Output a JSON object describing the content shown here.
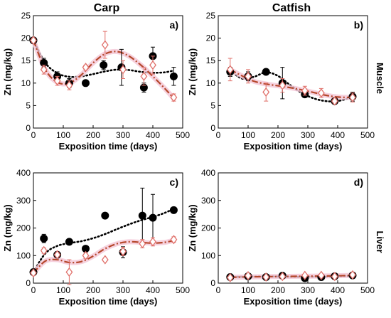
{
  "column_titles": [
    "Carp",
    "Catfish"
  ],
  "row_labels": [
    "Muscle",
    "Liver"
  ],
  "colors": {
    "fish_fit": "#000000",
    "shrimp_marker": "#e0706a",
    "shrimp_fit": "#b5472b",
    "shade": "#f4c5d6"
  },
  "chart_data": [
    {
      "type": "scatter",
      "panel_label": "a)",
      "column_title": "Carp",
      "row_label": "Muscle",
      "xlabel": "Exposition time (days)",
      "ylabel": "Zn (mg/kg)",
      "xlim": [
        0,
        500
      ],
      "ylim": [
        0,
        25
      ],
      "xticks": [
        0,
        100,
        200,
        300,
        400,
        500
      ],
      "yticks": [
        0,
        5,
        10,
        15,
        20,
        25
      ],
      "grid": false,
      "series": [
        {
          "marker": "filled-circle",
          "x": [
            0,
            35,
            80,
            120,
            175,
            235,
            295,
            370,
            400,
            470
          ],
          "y": [
            19.5,
            14.5,
            11.5,
            10,
            10,
            14,
            13.5,
            9,
            16,
            11.5
          ],
          "err": [
            0.5,
            1.0,
            1.0,
            1.0,
            0.5,
            1.0,
            4.0,
            1.0,
            2.0,
            2.0
          ]
        },
        {
          "marker": "open-diamond",
          "x": [
            0,
            35,
            80,
            120,
            175,
            240,
            300,
            370,
            400,
            470
          ],
          "y": [
            19.5,
            13.0,
            10.5,
            9.5,
            13.5,
            18.5,
            13.0,
            11.5,
            14.0,
            6.8
          ],
          "err": [
            0.5,
            1.0,
            1.0,
            1.0,
            0.5,
            3.0,
            2.0,
            2.0,
            2.0,
            0.8
          ]
        }
      ],
      "fits": [
        {
          "style": "dotted",
          "x": [
            0,
            40,
            80,
            120,
            160,
            200,
            240,
            280,
            320,
            360,
            400,
            440,
            470
          ],
          "y": [
            19.5,
            14.5,
            12.2,
            11.4,
            11.5,
            12.0,
            12.6,
            13.0,
            12.9,
            12.5,
            12.3,
            12.4,
            12.8
          ]
        },
        {
          "style": "dashdot",
          "x": [
            0,
            40,
            80,
            120,
            160,
            200,
            240,
            280,
            320,
            360,
            400,
            440,
            470
          ],
          "y": [
            19.5,
            13.0,
            10.2,
            10.0,
            11.8,
            14.5,
            16.5,
            17.0,
            16.0,
            14.0,
            11.5,
            8.8,
            6.6
          ]
        }
      ]
    },
    {
      "type": "scatter",
      "panel_label": "b)",
      "column_title": "Catfish",
      "row_label": "Muscle",
      "xlabel": "Exposition time (days)",
      "ylabel": "Zn (mg/kg)",
      "xlim": [
        0,
        500
      ],
      "ylim": [
        0,
        25
      ],
      "xticks": [
        0,
        100,
        200,
        300,
        400,
        500
      ],
      "yticks": [
        0,
        5,
        10,
        15,
        20,
        25
      ],
      "grid": false,
      "series": [
        {
          "marker": "filled-circle",
          "x": [
            40,
            100,
            160,
            215,
            290,
            390,
            450
          ],
          "y": [
            12.5,
            11.5,
            12.5,
            10.0,
            7.5,
            6.0,
            7.0
          ],
          "err": [
            1.0,
            1.0,
            0.5,
            3.5,
            0.5,
            0.5,
            1.0
          ]
        },
        {
          "marker": "open-diamond",
          "x": [
            40,
            100,
            160,
            215,
            290,
            345,
            390,
            450
          ],
          "y": [
            13.0,
            11.5,
            8.0,
            9.5,
            8.3,
            7.8,
            6.0,
            6.8
          ],
          "err": [
            2.5,
            1.5,
            2.0,
            1.5,
            1.0,
            1.0,
            0.5,
            1.0
          ]
        }
      ],
      "fits": [
        {
          "style": "dotted",
          "x": [
            40,
            80,
            120,
            160,
            200,
            240,
            280,
            320,
            360,
            400,
            450
          ],
          "y": [
            12.8,
            11.0,
            11.4,
            12.4,
            11.6,
            9.6,
            7.8,
            6.6,
            6.0,
            6.0,
            6.9
          ]
        },
        {
          "style": "dashdot",
          "x": [
            40,
            80,
            120,
            160,
            200,
            240,
            280,
            320,
            360,
            400,
            450
          ],
          "y": [
            13.0,
            11.6,
            10.4,
            9.8,
            9.4,
            9.0,
            8.5,
            7.9,
            7.3,
            6.9,
            6.8
          ]
        }
      ]
    },
    {
      "type": "scatter",
      "panel_label": "c)",
      "column_title": "Carp",
      "row_label": "Liver",
      "xlabel": "Exposition time (days)",
      "ylabel": "Zn (mg/kg)",
      "xlim": [
        0,
        500
      ],
      "ylim": [
        0,
        400
      ],
      "xticks": [
        0,
        100,
        200,
        300,
        400,
        500
      ],
      "yticks": [
        0,
        100,
        200,
        300,
        400
      ],
      "grid": false,
      "series": [
        {
          "marker": "filled-circle",
          "x": [
            0,
            35,
            80,
            120,
            175,
            240,
            300,
            365,
            400,
            470
          ],
          "y": [
            40,
            162,
            103,
            150,
            125,
            245,
            112,
            245,
            237,
            265
          ],
          "err": [
            5,
            15,
            8,
            5,
            5,
            5,
            20,
            100,
            85,
            5
          ]
        },
        {
          "marker": "open-diamond",
          "x": [
            0,
            35,
            80,
            120,
            175,
            240,
            300,
            365,
            400,
            470
          ],
          "y": [
            37,
            118,
            103,
            40,
            100,
            85,
            115,
            143,
            150,
            158
          ],
          "err": [
            5,
            10,
            8,
            45,
            10,
            5,
            15,
            15,
            15,
            10
          ]
        }
      ],
      "fits": [
        {
          "style": "dotted",
          "x": [
            0,
            40,
            80,
            120,
            160,
            200,
            240,
            280,
            320,
            360,
            400,
            440,
            470
          ],
          "y": [
            40,
            108,
            135,
            145,
            152,
            163,
            178,
            196,
            213,
            228,
            240,
            255,
            270
          ]
        },
        {
          "style": "dashdot",
          "x": [
            0,
            40,
            80,
            120,
            160,
            200,
            240,
            280,
            320,
            360,
            400,
            440,
            470
          ],
          "y": [
            37,
            80,
            85,
            75,
            78,
            98,
            125,
            143,
            150,
            148,
            145,
            148,
            155
          ]
        }
      ]
    },
    {
      "type": "scatter",
      "panel_label": "d)",
      "column_title": "Catfish",
      "row_label": "Liver",
      "xlabel": "Exposition time (days)",
      "ylabel": "Zn (mg/kg)",
      "xlim": [
        0,
        500
      ],
      "ylim": [
        0,
        400
      ],
      "xticks": [
        0,
        100,
        200,
        300,
        400,
        500
      ],
      "yticks": [
        0,
        100,
        200,
        300,
        400
      ],
      "grid": false,
      "series": [
        {
          "marker": "filled-circle",
          "x": [
            40,
            100,
            160,
            215,
            290,
            345,
            390,
            450
          ],
          "y": [
            22,
            25,
            22,
            27,
            18,
            22,
            25,
            28
          ],
          "err": [
            3,
            3,
            3,
            3,
            3,
            3,
            3,
            3
          ]
        },
        {
          "marker": "open-diamond",
          "x": [
            40,
            100,
            160,
            215,
            290,
            345,
            390,
            450
          ],
          "y": [
            20,
            27,
            22,
            24,
            28,
            28,
            24,
            30
          ],
          "err": [
            3,
            4,
            3,
            3,
            4,
            4,
            3,
            4
          ]
        }
      ],
      "fits": [
        {
          "style": "dotted",
          "x": [
            40,
            120,
            200,
            280,
            360,
            450
          ],
          "y": [
            22,
            24,
            24,
            23,
            24,
            27
          ]
        },
        {
          "style": "dashdot",
          "x": [
            40,
            120,
            200,
            280,
            360,
            450
          ],
          "y": [
            21,
            23,
            24,
            25,
            26,
            28
          ]
        }
      ]
    }
  ]
}
